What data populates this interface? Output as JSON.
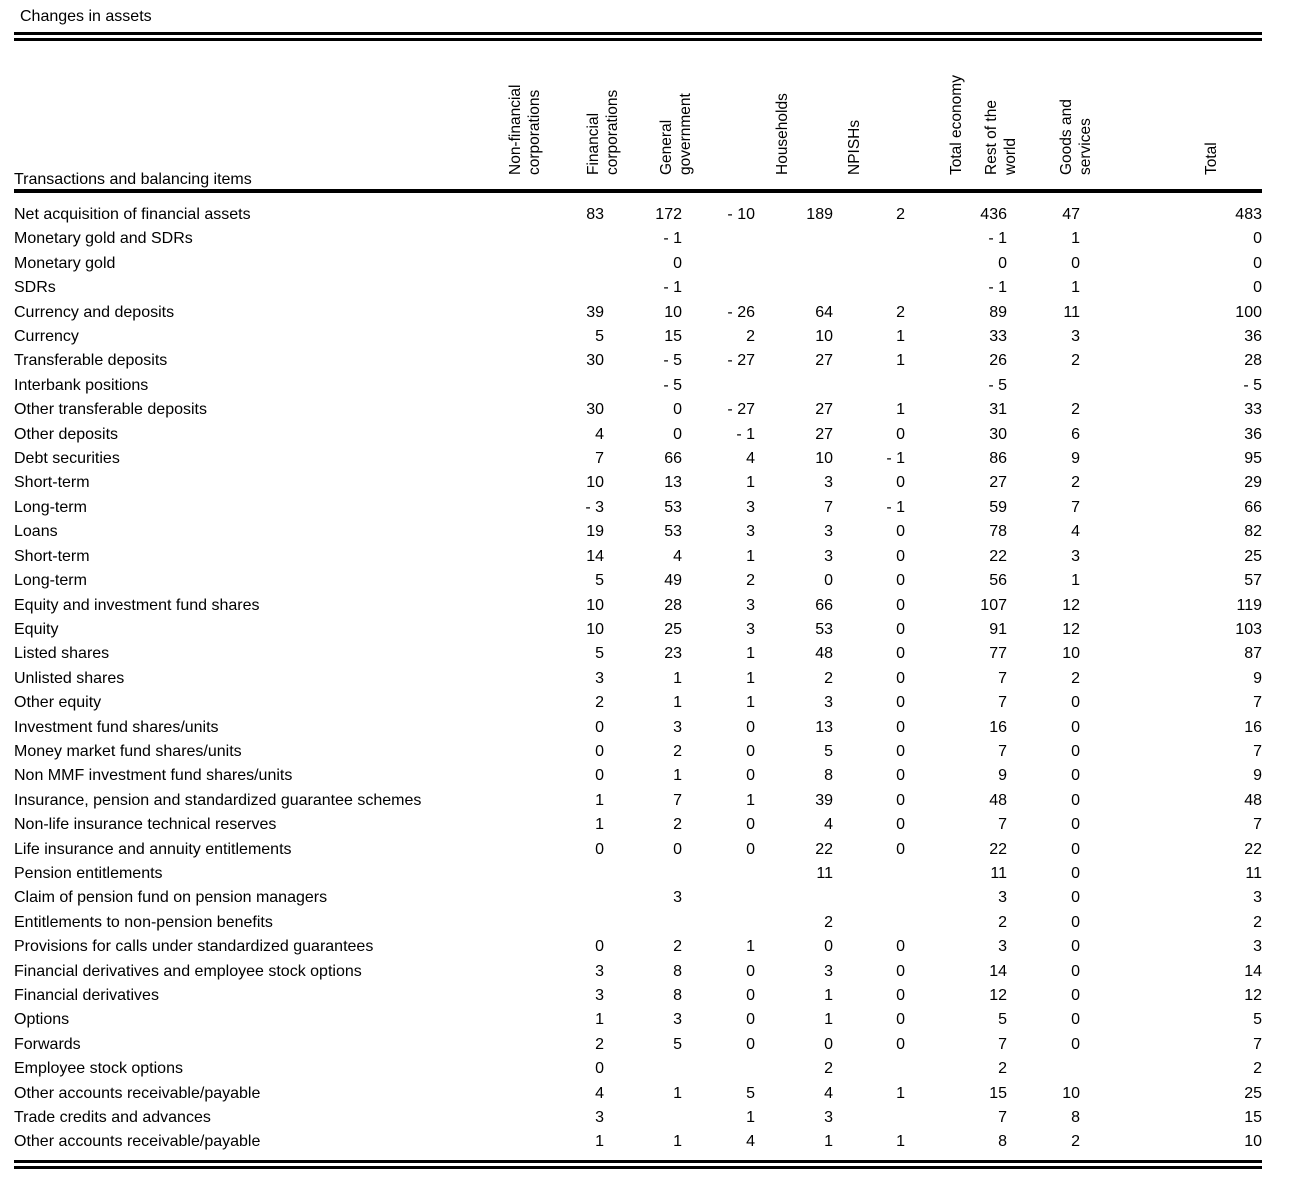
{
  "title": "Changes in assets",
  "table": {
    "stub_header": "Transactions and balancing items",
    "columns": [
      "Non-financial\ncorporations",
      "Financial\ncorporations",
      "General\ngovernment",
      "Households",
      "NPISHs",
      "Total economy",
      "Rest of the\nworld",
      "Goods and\nservices",
      "Total"
    ],
    "rows": [
      {
        "label": "Net acquisition of financial assets",
        "indent": 0,
        "values": [
          "83",
          "172",
          "- 10",
          "189",
          "2",
          "436",
          "47",
          "",
          "483"
        ]
      },
      {
        "label": "Monetary gold and SDRs",
        "indent": 1,
        "values": [
          "",
          "- 1",
          "",
          "",
          "",
          "- 1",
          "1",
          "",
          "0"
        ]
      },
      {
        "label": "Monetary gold",
        "indent": 2,
        "values": [
          "",
          "0",
          "",
          "",
          "",
          "0",
          "0",
          "",
          "0"
        ]
      },
      {
        "label": "SDRs",
        "indent": 2,
        "values": [
          "",
          "- 1",
          "",
          "",
          "",
          "- 1",
          "1",
          "",
          "0"
        ]
      },
      {
        "label": "Currency and deposits",
        "indent": 1,
        "values": [
          "39",
          "10",
          "- 26",
          "64",
          "2",
          "89",
          "11",
          "",
          "100"
        ]
      },
      {
        "label": "Currency",
        "indent": 2,
        "values": [
          "5",
          "15",
          "2",
          "10",
          "1",
          "33",
          "3",
          "",
          "36"
        ]
      },
      {
        "label": "Transferable deposits",
        "indent": 2,
        "values": [
          "30",
          "- 5",
          "- 27",
          "27",
          "1",
          "26",
          "2",
          "",
          "28"
        ]
      },
      {
        "label": "Interbank positions",
        "indent": 4,
        "values": [
          "",
          "- 5",
          "",
          "",
          "",
          "- 5",
          "",
          "",
          "- 5"
        ]
      },
      {
        "label": "Other transferable deposits",
        "indent": 4,
        "values": [
          "30",
          "0",
          "- 27",
          "27",
          "1",
          "31",
          "2",
          "",
          "33"
        ]
      },
      {
        "label": "Other deposits",
        "indent": 2,
        "values": [
          "4",
          "0",
          "- 1",
          "27",
          "0",
          "30",
          "6",
          "",
          "36"
        ]
      },
      {
        "label": "Debt securities",
        "indent": 1,
        "values": [
          "7",
          "66",
          "4",
          "10",
          "- 1",
          "86",
          "9",
          "",
          "95"
        ]
      },
      {
        "label": "Short-term",
        "indent": 2,
        "values": [
          "10",
          "13",
          "1",
          "3",
          "0",
          "27",
          "2",
          "",
          "29"
        ]
      },
      {
        "label": "Long-term",
        "indent": 2,
        "values": [
          "- 3",
          "53",
          "3",
          "7",
          "- 1",
          "59",
          "7",
          "",
          "66"
        ]
      },
      {
        "label": "Loans",
        "indent": 1,
        "values": [
          "19",
          "53",
          "3",
          "3",
          "0",
          "78",
          "4",
          "",
          "82"
        ]
      },
      {
        "label": "Short-term",
        "indent": 2,
        "values": [
          "14",
          "4",
          "1",
          "3",
          "0",
          "22",
          "3",
          "",
          "25"
        ]
      },
      {
        "label": "Long-term",
        "indent": 2,
        "values": [
          "5",
          "49",
          "2",
          "0",
          "0",
          "56",
          "1",
          "",
          "57"
        ]
      },
      {
        "label": "Equity and investment fund shares",
        "indent": 1,
        "values": [
          "10",
          "28",
          "3",
          "66",
          "0",
          "107",
          "12",
          "",
          "119"
        ]
      },
      {
        "label": "Equity",
        "indent": 2,
        "values": [
          "10",
          "25",
          "3",
          "53",
          "0",
          "91",
          "12",
          "",
          "103"
        ]
      },
      {
        "label": "Listed shares",
        "indent": 2,
        "values": [
          "5",
          "23",
          "1",
          "48",
          "0",
          "77",
          "10",
          "",
          "87"
        ]
      },
      {
        "label": "Unlisted shares",
        "indent": 2,
        "values": [
          "3",
          "1",
          "1",
          "2",
          "0",
          "7",
          "2",
          "",
          "9"
        ]
      },
      {
        "label": "Other equity",
        "indent": 2,
        "values": [
          "2",
          "1",
          "1",
          "3",
          "0",
          "7",
          "0",
          "",
          "7"
        ]
      },
      {
        "label": "Investment fund shares/units",
        "indent": 1,
        "values": [
          "0",
          "3",
          "0",
          "13",
          "0",
          "16",
          "0",
          "",
          "16"
        ]
      },
      {
        "label": "Money market fund shares/units",
        "indent": 2,
        "values": [
          "0",
          "2",
          "0",
          "5",
          "0",
          "7",
          "0",
          "",
          "7"
        ]
      },
      {
        "label": "Non MMF investment fund shares/units",
        "indent": 2,
        "values": [
          "0",
          "1",
          "0",
          "8",
          "0",
          "9",
          "0",
          "",
          "9"
        ]
      },
      {
        "label": "Insurance, pension and standardized guarantee schemes",
        "indent": 1,
        "values": [
          "1",
          "7",
          "1",
          "39",
          "0",
          "48",
          "0",
          "",
          "48"
        ]
      },
      {
        "label": "Non-life insurance technical reserves",
        "indent": 2,
        "values": [
          "1",
          "2",
          "0",
          "4",
          "0",
          "7",
          "0",
          "",
          "7"
        ]
      },
      {
        "label": "Life insurance and annuity entitlements",
        "indent": 2,
        "values": [
          "0",
          "0",
          "0",
          "22",
          "0",
          "22",
          "0",
          "",
          "22"
        ]
      },
      {
        "label": "Pension entitlements",
        "indent": 2,
        "values": [
          "",
          "",
          "",
          "11",
          "",
          "11",
          "0",
          "",
          "11"
        ]
      },
      {
        "label": "Claim of pension fund on pension managers",
        "indent": 2,
        "values": [
          "",
          "3",
          "",
          "",
          "",
          "3",
          "0",
          "",
          "3"
        ]
      },
      {
        "label": "Entitlements to non-pension benefits",
        "indent": 2,
        "values": [
          "",
          "",
          "",
          "2",
          "",
          "2",
          "0",
          "",
          "2"
        ]
      },
      {
        "label": "Provisions for calls under standardized guarantees",
        "indent": 2,
        "values": [
          "0",
          "2",
          "1",
          "0",
          "0",
          "3",
          "0",
          "",
          "3"
        ]
      },
      {
        "label": "Financial derivatives and employee stock options",
        "indent": 1,
        "values": [
          "3",
          "8",
          "0",
          "3",
          "0",
          "14",
          "0",
          "",
          "14"
        ]
      },
      {
        "label": "Financial derivatives",
        "indent": 3,
        "values": [
          "3",
          "8",
          "0",
          "1",
          "0",
          "12",
          "0",
          "",
          "12"
        ]
      },
      {
        "label": "Options",
        "indent": 4,
        "values": [
          "1",
          "3",
          "0",
          "1",
          "0",
          "5",
          "0",
          "",
          "5"
        ]
      },
      {
        "label": "Forwards",
        "indent": 4,
        "values": [
          "2",
          "5",
          "0",
          "0",
          "0",
          "7",
          "0",
          "",
          "7"
        ]
      },
      {
        "label": "Employee stock options",
        "indent": 3,
        "values": [
          "0",
          "",
          "",
          "2",
          "",
          "2",
          "",
          "",
          "2"
        ]
      },
      {
        "label": "Other accounts receivable/payable",
        "indent": 1,
        "values": [
          "4",
          "1",
          "5",
          "4",
          "1",
          "15",
          "10",
          "",
          "25"
        ]
      },
      {
        "label": "Trade credits and advances",
        "indent": 2,
        "values": [
          "3",
          "",
          "1",
          "3",
          "",
          "7",
          "8",
          "",
          "15"
        ]
      },
      {
        "label": "Other accounts receivable/payable",
        "indent": 2,
        "values": [
          "1",
          "1",
          "4",
          "1",
          "1",
          "8",
          "2",
          "",
          "10"
        ]
      }
    ]
  }
}
